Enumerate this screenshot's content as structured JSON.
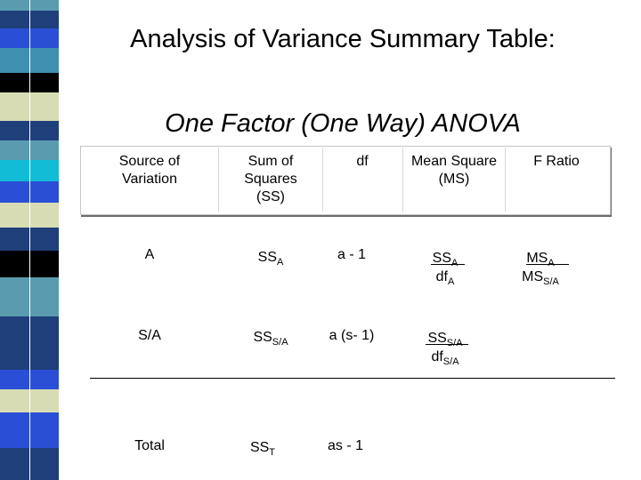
{
  "slide": {
    "title": "Analysis of Variance Summary Table:",
    "subtitle": "One Factor (One Way) ANOVA"
  },
  "decor": {
    "colors": [
      "#5b9bb0",
      "#1f3f7a",
      "#d7dcb4",
      "#000000",
      "#2a4fd6",
      "#3f8fb0",
      "#12bcd6"
    ]
  },
  "table": {
    "headers": {
      "source": "Source of Variation",
      "ss": "Sum of Squares (SS)",
      "df": "df",
      "ms": "Mean Square (MS)",
      "f": "F Ratio"
    },
    "rows": {
      "a": {
        "source": "A",
        "ss": "SS",
        "ss_sub": "A",
        "df": "a - 1",
        "ms_num": "SS",
        "ms_num_sub": "A",
        "ms_den": "df",
        "ms_den_sub": "A",
        "f_num": "MS",
        "f_num_sub": "A",
        "f_den": "MS",
        "f_den_sub": "S/A"
      },
      "sa": {
        "source": "S/A",
        "ss": "SS",
        "ss_sub": "S/A",
        "df": "a (s- 1)",
        "ms_num": "SS",
        "ms_num_sub": "S/A",
        "ms_den": "df",
        "ms_den_sub": "S/A"
      },
      "total": {
        "source": "Total",
        "ss": "SS",
        "ss_sub": "T",
        "df": "as - 1"
      }
    }
  }
}
